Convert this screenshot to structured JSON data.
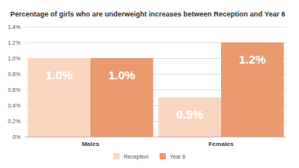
{
  "chart_data": {
    "type": "bar",
    "title": "Percentage of girls who are underweight increases between Reception and Year 6",
    "categories": [
      "Males",
      "Females"
    ],
    "series": [
      {
        "name": "Reception",
        "color": "#f9d5c0",
        "values": [
          1.0,
          0.5
        ],
        "value_labels": [
          "1.0%",
          "0.5%"
        ]
      },
      {
        "name": "Year 6",
        "color": "#eb9a70",
        "values": [
          1.0,
          1.2
        ],
        "value_labels": [
          "1.0%",
          "1.2%"
        ]
      }
    ],
    "ylim": [
      0,
      1.4
    ],
    "yticks": [
      {
        "value": 0,
        "label": "0%"
      },
      {
        "value": 0.2,
        "label": "0.2%"
      },
      {
        "value": 0.4,
        "label": "0.4%"
      },
      {
        "value": 0.6,
        "label": "0.6%"
      },
      {
        "value": 0.8,
        "label": "0.8%"
      },
      {
        "value": 1.0,
        "label": "1.0%"
      },
      {
        "value": 1.2,
        "label": "1.2%"
      },
      {
        "value": 1.4,
        "label": "1.4%"
      }
    ],
    "grid": true,
    "legend": "bottom",
    "data_labels": true
  }
}
